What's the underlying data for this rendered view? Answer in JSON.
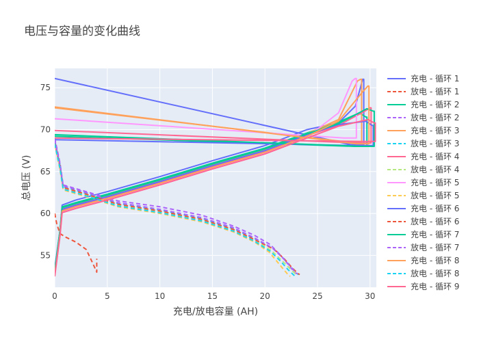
{
  "chart_data": {
    "type": "line",
    "title": "电压与容量的变化曲线",
    "xlabel": "充电/放电容量 (AH)",
    "ylabel": "总电压 (V)",
    "xlim": [
      0,
      30.6
    ],
    "ylim": [
      51.2,
      77.3
    ],
    "x_ticks": [
      0,
      5,
      10,
      15,
      20,
      25,
      30
    ],
    "y_ticks": [
      55,
      60,
      65,
      70,
      75
    ],
    "grid": true,
    "legend_position": "right",
    "colors": {
      "plot_bg": "#E5ECF6",
      "grid": "#ffffff",
      "palette": [
        "#636EFA",
        "#EF553B",
        "#00CC96",
        "#AB63FA",
        "#FFA15A",
        "#19D3F3",
        "#FF6692",
        "#B6E880",
        "#FF97FF",
        "#FECB52"
      ]
    },
    "legend_entries": [
      {
        "name": "充电 - 循环 1",
        "color": "#636EFA",
        "dash": "solid"
      },
      {
        "name": "放电 - 循环 1",
        "color": "#EF553B",
        "dash": "dash"
      },
      {
        "name": "充电 - 循环 2",
        "color": "#00CC96",
        "dash": "solid"
      },
      {
        "name": "放电 - 循环 2",
        "color": "#AB63FA",
        "dash": "dash"
      },
      {
        "name": "充电 - 循环 3",
        "color": "#FFA15A",
        "dash": "solid"
      },
      {
        "name": "放电 - 循环 3",
        "color": "#19D3F3",
        "dash": "dash"
      },
      {
        "name": "充电 - 循环 4",
        "color": "#FF6692",
        "dash": "solid"
      },
      {
        "name": "放电 - 循环 4",
        "color": "#B6E880",
        "dash": "dash"
      },
      {
        "name": "充电 - 循环 5",
        "color": "#FF97FF",
        "dash": "solid"
      },
      {
        "name": "放电 - 循环 5",
        "color": "#FECB52",
        "dash": "dash"
      },
      {
        "name": "充电 - 循环 6",
        "color": "#636EFA",
        "dash": "solid"
      },
      {
        "name": "放电 - 循环 6",
        "color": "#EF553B",
        "dash": "dash"
      },
      {
        "name": "充电 - 循环 7",
        "color": "#00CC96",
        "dash": "solid"
      },
      {
        "name": "放电 - 循环 7",
        "color": "#AB63FA",
        "dash": "dash"
      },
      {
        "name": "充电 - 循环 8",
        "color": "#FFA15A",
        "dash": "solid"
      },
      {
        "name": "放电 - 循环 8",
        "color": "#19D3F3",
        "dash": "dash"
      },
      {
        "name": "充电 - 循环 9",
        "color": "#FF6692",
        "dash": "solid"
      }
    ],
    "series": [
      {
        "name": "充电 - 循环 1",
        "color": "#636EFA",
        "dash": "solid",
        "x": [
          0,
          0.5,
          0.7,
          2,
          5,
          10,
          15,
          20,
          24,
          27,
          28.6,
          29.3,
          29.4,
          29.4,
          28.2,
          0
        ],
        "y": [
          53.5,
          58,
          61,
          61.6,
          62.6,
          64.4,
          66.3,
          68.1,
          70.0,
          70.8,
          72.8,
          76.0,
          76.0,
          68.2,
          68.2,
          76.1
        ]
      },
      {
        "name": "放电 - 循环 1",
        "color": "#EF553B",
        "dash": "dash",
        "x": [
          0,
          0.2,
          0.5,
          1,
          2,
          3,
          3.6,
          4.0,
          4.0
        ],
        "y": [
          60,
          58.7,
          57.6,
          57.2,
          56.6,
          55.7,
          54.1,
          53.0,
          54.6
        ]
      },
      {
        "name": "充电 - 循环 2",
        "color": "#00CC96",
        "dash": "solid",
        "x": [
          0,
          0.5,
          0.7,
          2,
          5,
          10,
          15,
          20,
          24,
          27,
          29.0,
          29.6,
          29.7,
          29.7,
          28.5,
          0
        ],
        "y": [
          53.2,
          58,
          60.8,
          61.3,
          62.3,
          64.1,
          66.0,
          67.8,
          69.6,
          70.9,
          72.0,
          71.5,
          71.5,
          68.0,
          68.0,
          69.2
        ]
      },
      {
        "name": "放电 - 循环 2",
        "color": "#AB63FA",
        "dash": "dash",
        "x": [
          0,
          0.2,
          0.5,
          0.8,
          3,
          6,
          10,
          14,
          17,
          19,
          20.5,
          21.5,
          22.3,
          22.8,
          23.0
        ],
        "y": [
          69.0,
          67.8,
          66.0,
          63.4,
          62.6,
          61.5,
          60.8,
          59.8,
          58.5,
          57.4,
          56.3,
          55.0,
          53.8,
          53.0,
          52.8
        ]
      },
      {
        "name": "充电 - 循环 3",
        "color": "#FFA15A",
        "dash": "solid",
        "x": [
          0,
          0.5,
          0.7,
          2,
          5,
          10,
          15,
          20,
          24,
          27,
          28.8,
          29.1,
          29.2,
          29.2,
          28.0,
          0
        ],
        "y": [
          53.0,
          57.8,
          60.6,
          61.1,
          62.1,
          63.9,
          65.8,
          67.6,
          69.5,
          71.2,
          75.8,
          76.0,
          76.0,
          68.5,
          68.5,
          72.6
        ]
      },
      {
        "name": "放电 - 循环 3",
        "color": "#19D3F3",
        "dash": "dash",
        "x": [
          0,
          0.2,
          0.5,
          0.8,
          3,
          6,
          10,
          14,
          17,
          19,
          20.8,
          21.8,
          22.5,
          23.0,
          23.2
        ],
        "y": [
          68.7,
          67.5,
          65.8,
          63.2,
          62.4,
          61.2,
          60.4,
          59.4,
          58.2,
          57.0,
          55.8,
          54.6,
          53.6,
          52.9,
          52.7
        ]
      },
      {
        "name": "充电 - 循环 4",
        "color": "#FF6692",
        "dash": "solid",
        "x": [
          0,
          0.5,
          0.7,
          2,
          5,
          10,
          15,
          20,
          24,
          27,
          29.5,
          30.0,
          30.1,
          30.1,
          28.8,
          0
        ],
        "y": [
          52.8,
          57.6,
          60.4,
          60.9,
          61.9,
          63.7,
          65.6,
          67.4,
          69.3,
          70.5,
          72.2,
          72.6,
          72.6,
          68.4,
          68.4,
          69.9
        ]
      },
      {
        "name": "放电 - 循环 4",
        "color": "#B6E880",
        "dash": "dash",
        "x": [
          0,
          0.2,
          0.5,
          0.8,
          3,
          6,
          10,
          14,
          17,
          19,
          20.6,
          21.6,
          22.4,
          22.9,
          23.1
        ],
        "y": [
          68.4,
          67.2,
          65.5,
          63.0,
          62.2,
          61.0,
          60.2,
          59.2,
          58.0,
          56.8,
          55.6,
          54.4,
          53.4,
          52.8,
          52.6
        ]
      },
      {
        "name": "充电 - 循环 5",
        "color": "#FF97FF",
        "dash": "solid",
        "x": [
          0,
          0.5,
          0.7,
          2,
          5,
          10,
          15,
          20,
          24,
          27,
          28.3,
          28.6,
          28.7,
          28.7,
          27.5,
          0
        ],
        "y": [
          52.6,
          57.4,
          60.2,
          60.7,
          61.7,
          63.5,
          65.4,
          67.2,
          69.1,
          72.0,
          75.8,
          76.1,
          76.1,
          69.0,
          69.0,
          71.3
        ]
      },
      {
        "name": "放电 - 循环 5",
        "color": "#FECB52",
        "dash": "dash",
        "x": [
          0,
          0.2,
          0.5,
          0.8,
          3,
          6,
          10,
          14,
          17,
          19,
          20.4,
          21.2,
          21.8,
          22.2,
          22.4
        ],
        "y": [
          68.2,
          67.0,
          65.2,
          62.8,
          62.0,
          60.8,
          60.0,
          59.0,
          57.8,
          56.6,
          55.4,
          54.2,
          53.3,
          52.7,
          52.5
        ]
      },
      {
        "name": "充电 - 循环 6",
        "color": "#636EFA",
        "dash": "solid",
        "x": [
          0,
          0.5,
          0.7,
          2,
          5,
          10,
          15,
          20,
          24,
          27,
          29.6,
          30.2,
          30.3,
          30.3,
          29.0,
          0
        ],
        "y": [
          52.9,
          57.7,
          60.5,
          61.0,
          62.0,
          63.8,
          65.7,
          67.5,
          69.4,
          70.6,
          71.0,
          70.5,
          70.5,
          68.1,
          68.1,
          68.8
        ]
      },
      {
        "name": "放电 - 循环 6",
        "color": "#EF553B",
        "dash": "dash",
        "x": [
          0,
          0.2,
          0.5,
          0.8,
          3,
          6,
          10,
          14,
          17,
          19,
          20.9,
          21.9,
          22.6,
          23.1,
          23.3
        ],
        "y": [
          68.5,
          67.3,
          65.6,
          63.1,
          62.3,
          61.1,
          60.3,
          59.3,
          58.1,
          56.9,
          55.7,
          54.5,
          53.5,
          52.9,
          52.7
        ]
      },
      {
        "name": "充电 - 循环 7",
        "color": "#00CC96",
        "dash": "solid",
        "x": [
          0,
          0.5,
          0.7,
          2,
          5,
          10,
          15,
          20,
          24,
          27,
          29.7,
          30.3,
          30.4,
          30.4,
          29.1,
          0
        ],
        "y": [
          53.1,
          57.9,
          60.7,
          61.2,
          62.2,
          64.0,
          65.9,
          67.7,
          69.5,
          70.7,
          72.5,
          72.2,
          72.2,
          68.0,
          68.0,
          69.4
        ]
      },
      {
        "name": "放电 - 循环 7",
        "color": "#AB63FA",
        "dash": "dash",
        "x": [
          0,
          0.2,
          0.5,
          0.8,
          3,
          6,
          10,
          14,
          17,
          19,
          20.7,
          21.7,
          22.4,
          22.9,
          23.1
        ],
        "y": [
          68.8,
          67.6,
          65.9,
          63.3,
          62.5,
          61.3,
          60.5,
          59.5,
          58.3,
          57.1,
          55.9,
          54.7,
          53.7,
          53.0,
          52.8
        ]
      },
      {
        "name": "充电 - 循环 8",
        "color": "#FFA15A",
        "dash": "solid",
        "x": [
          0,
          0.5,
          0.7,
          2,
          5,
          10,
          15,
          20,
          24,
          27,
          29.3,
          29.8,
          29.9,
          29.9,
          28.7,
          0
        ],
        "y": [
          52.7,
          57.5,
          60.3,
          60.8,
          61.8,
          63.6,
          65.5,
          67.3,
          69.2,
          71.0,
          74.5,
          75.2,
          75.2,
          68.3,
          68.3,
          72.7
        ]
      },
      {
        "name": "放电 - 循环 8",
        "color": "#19D3F3",
        "dash": "dash",
        "x": [
          0,
          0.2,
          0.5,
          0.8,
          3,
          6,
          10,
          14,
          17,
          19,
          20.5,
          21.5,
          22.2,
          22.7,
          22.9
        ],
        "y": [
          68.3,
          67.1,
          65.4,
          62.9,
          62.1,
          60.9,
          60.1,
          59.1,
          57.9,
          56.7,
          55.5,
          54.3,
          53.3,
          52.7,
          52.5
        ]
      },
      {
        "name": "充电 - 循环 9",
        "color": "#FF6692",
        "dash": "solid",
        "x": [
          0,
          0.5,
          0.7,
          2,
          5,
          10,
          15,
          20,
          24,
          27,
          29.8,
          30.4,
          30.5,
          30.5,
          29.2,
          0
        ],
        "y": [
          52.5,
          57.3,
          60.1,
          60.6,
          61.6,
          63.4,
          65.3,
          67.1,
          69.0,
          70.4,
          71.2,
          70.8,
          70.8,
          68.6,
          68.6,
          69.0
        ]
      }
    ]
  }
}
